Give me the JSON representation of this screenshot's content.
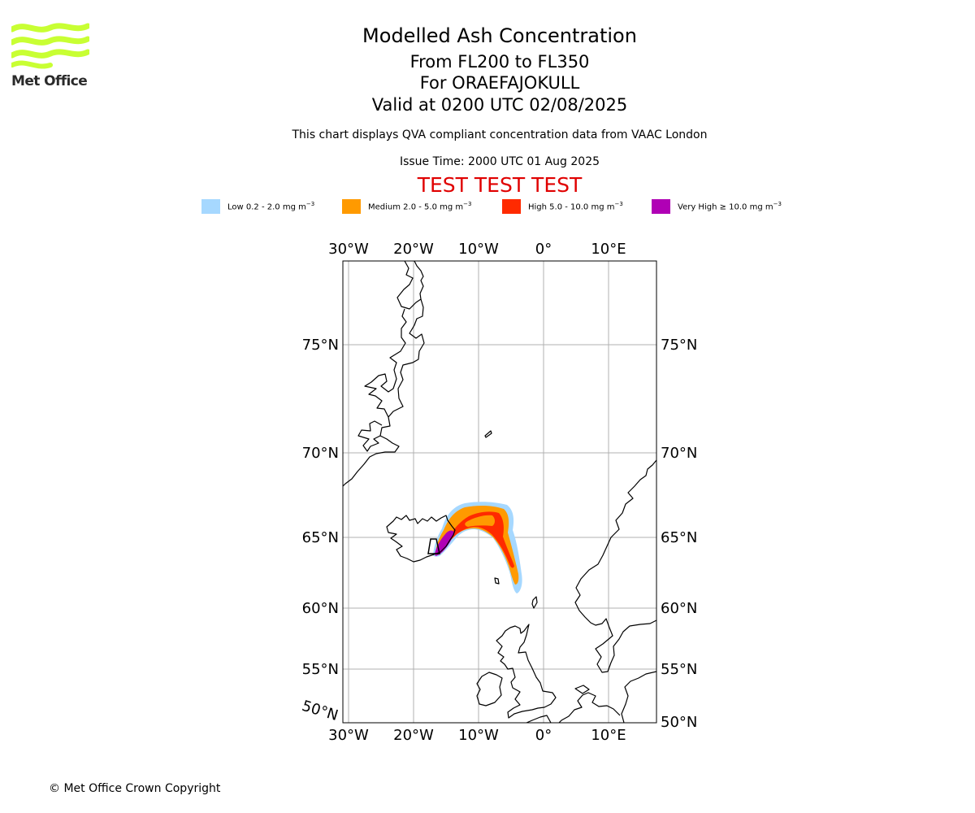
{
  "logo": {
    "text": "Met Office",
    "colors": {
      "waves": "#c8ff33",
      "text": "#2b2b2b"
    }
  },
  "header": {
    "title": "Modelled Ash Concentration",
    "flight_levels": "From FL200 to FL350",
    "volcano": "For ORAEFAJOKULL",
    "valid": "Valid at 0200 UTC 02/08/2025",
    "description": "This chart displays QVA compliant concentration data from VAAC London",
    "issue_time": "Issue Time: 2000 UTC 01 Aug 2025",
    "test_banner": "TEST TEST TEST"
  },
  "legend": [
    {
      "name": "low",
      "label": "Low 0.2 - 2.0 mg m",
      "unit_sup": "−3",
      "color": "#a6d8ff"
    },
    {
      "name": "medium",
      "label": "Medium 2.0 - 5.0 mg m",
      "unit_sup": "−3",
      "color": "#ff9a00"
    },
    {
      "name": "high",
      "label": "High 5.0 - 10.0 mg m",
      "unit_sup": "−3",
      "color": "#ff2a00"
    },
    {
      "name": "very-high",
      "label": "Very High  ≥  10.0 mg m",
      "unit_sup": "−3",
      "color": "#b000b5"
    }
  ],
  "map": {
    "grid": true,
    "lon_labels": [
      "30°W",
      "20°W",
      "10°W",
      "0°",
      "10°E"
    ],
    "lat_labels_left": [
      "75°N",
      "70°N",
      "65°N",
      "60°N",
      "55°N",
      "50°N"
    ],
    "lat_labels_right": [
      "75°N",
      "70°N",
      "65°N",
      "60°N",
      "55°N",
      "50°N"
    ],
    "colors": {
      "grid": "#b0b0b0",
      "coast": "#000000",
      "frame": "#000000"
    }
  },
  "footer": {
    "copyright": "© Met Office Crown Copyright"
  }
}
